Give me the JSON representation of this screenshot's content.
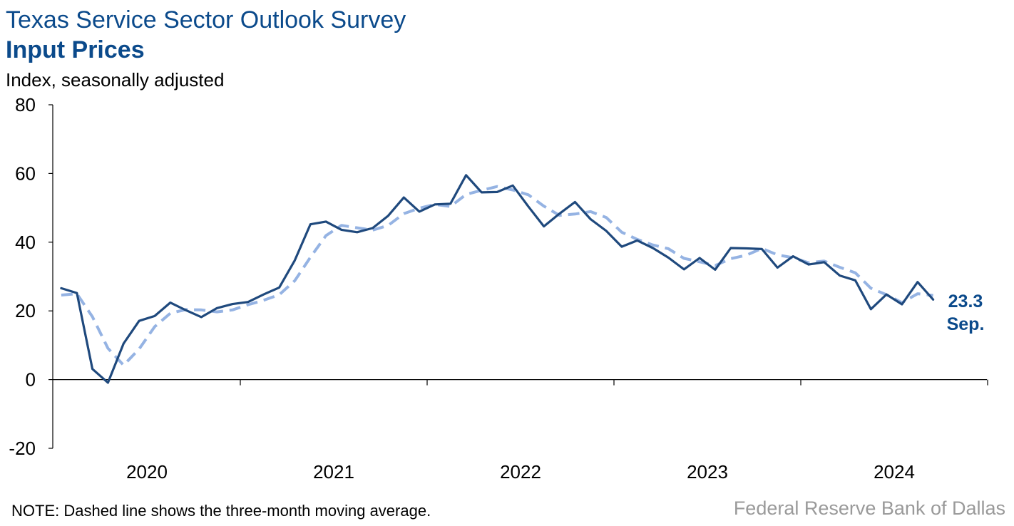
{
  "header": {
    "title": "Texas Service Sector Outlook Survey",
    "subtitle": "Input Prices",
    "unit_label": "Index, seasonally adjusted"
  },
  "footer": {
    "note": "NOTE: Dashed line shows the three-month moving average.",
    "source": "Federal Reserve Bank of Dallas"
  },
  "colors": {
    "index_line": "#1f497d",
    "moving_average_line": "#95b3e3",
    "title": "#0b4a8b",
    "source": "#9a9a9a"
  },
  "chart_data": {
    "type": "line",
    "title": "Input Prices",
    "ylabel": "Index, seasonally adjusted",
    "ylim": [
      -20,
      80
    ],
    "yticks": [
      "80",
      "60",
      "40",
      "20",
      "0",
      "-20"
    ],
    "year_labels": [
      "2020",
      "2021",
      "2022",
      "2023",
      "2024"
    ],
    "x": [
      "2020-01",
      "2020-02",
      "2020-03",
      "2020-04",
      "2020-05",
      "2020-06",
      "2020-07",
      "2020-08",
      "2020-09",
      "2020-10",
      "2020-11",
      "2020-12",
      "2021-01",
      "2021-02",
      "2021-03",
      "2021-04",
      "2021-05",
      "2021-06",
      "2021-07",
      "2021-08",
      "2021-09",
      "2021-10",
      "2021-11",
      "2021-12",
      "2022-01",
      "2022-02",
      "2022-03",
      "2022-04",
      "2022-05",
      "2022-06",
      "2022-07",
      "2022-08",
      "2022-09",
      "2022-10",
      "2022-11",
      "2022-12",
      "2023-01",
      "2023-02",
      "2023-03",
      "2023-04",
      "2023-05",
      "2023-06",
      "2023-07",
      "2023-08",
      "2023-09",
      "2023-10",
      "2023-11",
      "2023-12",
      "2024-01",
      "2024-02",
      "2024-03",
      "2024-04",
      "2024-05",
      "2024-06",
      "2024-07",
      "2024-08",
      "2024-09"
    ],
    "series": [
      {
        "values": [
          26.6,
          25.2,
          3.1,
          -0.9,
          10.5,
          17.1,
          18.5,
          22.4,
          20.2,
          18.2,
          20.8,
          22.0,
          22.6,
          24.8,
          26.8,
          34.7,
          45.2,
          46.0,
          43.6,
          42.9,
          44.1,
          47.7,
          53.0,
          48.9,
          51.0,
          51.2,
          59.5,
          54.5,
          54.6,
          56.5,
          50.4,
          44.6,
          48.3,
          51.7,
          46.7,
          43.3,
          38.7,
          40.5,
          38.3,
          35.5,
          32.1,
          35.4,
          32.0,
          38.3,
          38.2,
          38.0,
          32.6,
          35.9,
          33.5,
          34.2,
          30.3,
          28.9,
          20.5,
          24.8,
          21.9,
          28.4,
          23.3
        ]
      },
      {
        "values": [
          24.6,
          25.0,
          18.3,
          9.1,
          4.2,
          8.9,
          15.4,
          19.3,
          20.4,
          20.3,
          19.7,
          20.3,
          21.8,
          23.1,
          24.7,
          28.8,
          35.6,
          41.9,
          44.9,
          44.2,
          43.5,
          44.9,
          48.3,
          49.9,
          51.0,
          50.4,
          53.9,
          55.1,
          56.2,
          55.2,
          53.8,
          50.5,
          47.8,
          48.2,
          48.9,
          47.2,
          42.9,
          40.8,
          39.2,
          38.1,
          35.3,
          34.3,
          33.2,
          35.2,
          36.2,
          38.2,
          36.3,
          35.5,
          34.0,
          34.5,
          32.7,
          31.1,
          26.6,
          24.7,
          22.4,
          25.0,
          24.5
        ]
      }
    ],
    "annotation": {
      "value": "23.3",
      "month": "Sep."
    }
  }
}
